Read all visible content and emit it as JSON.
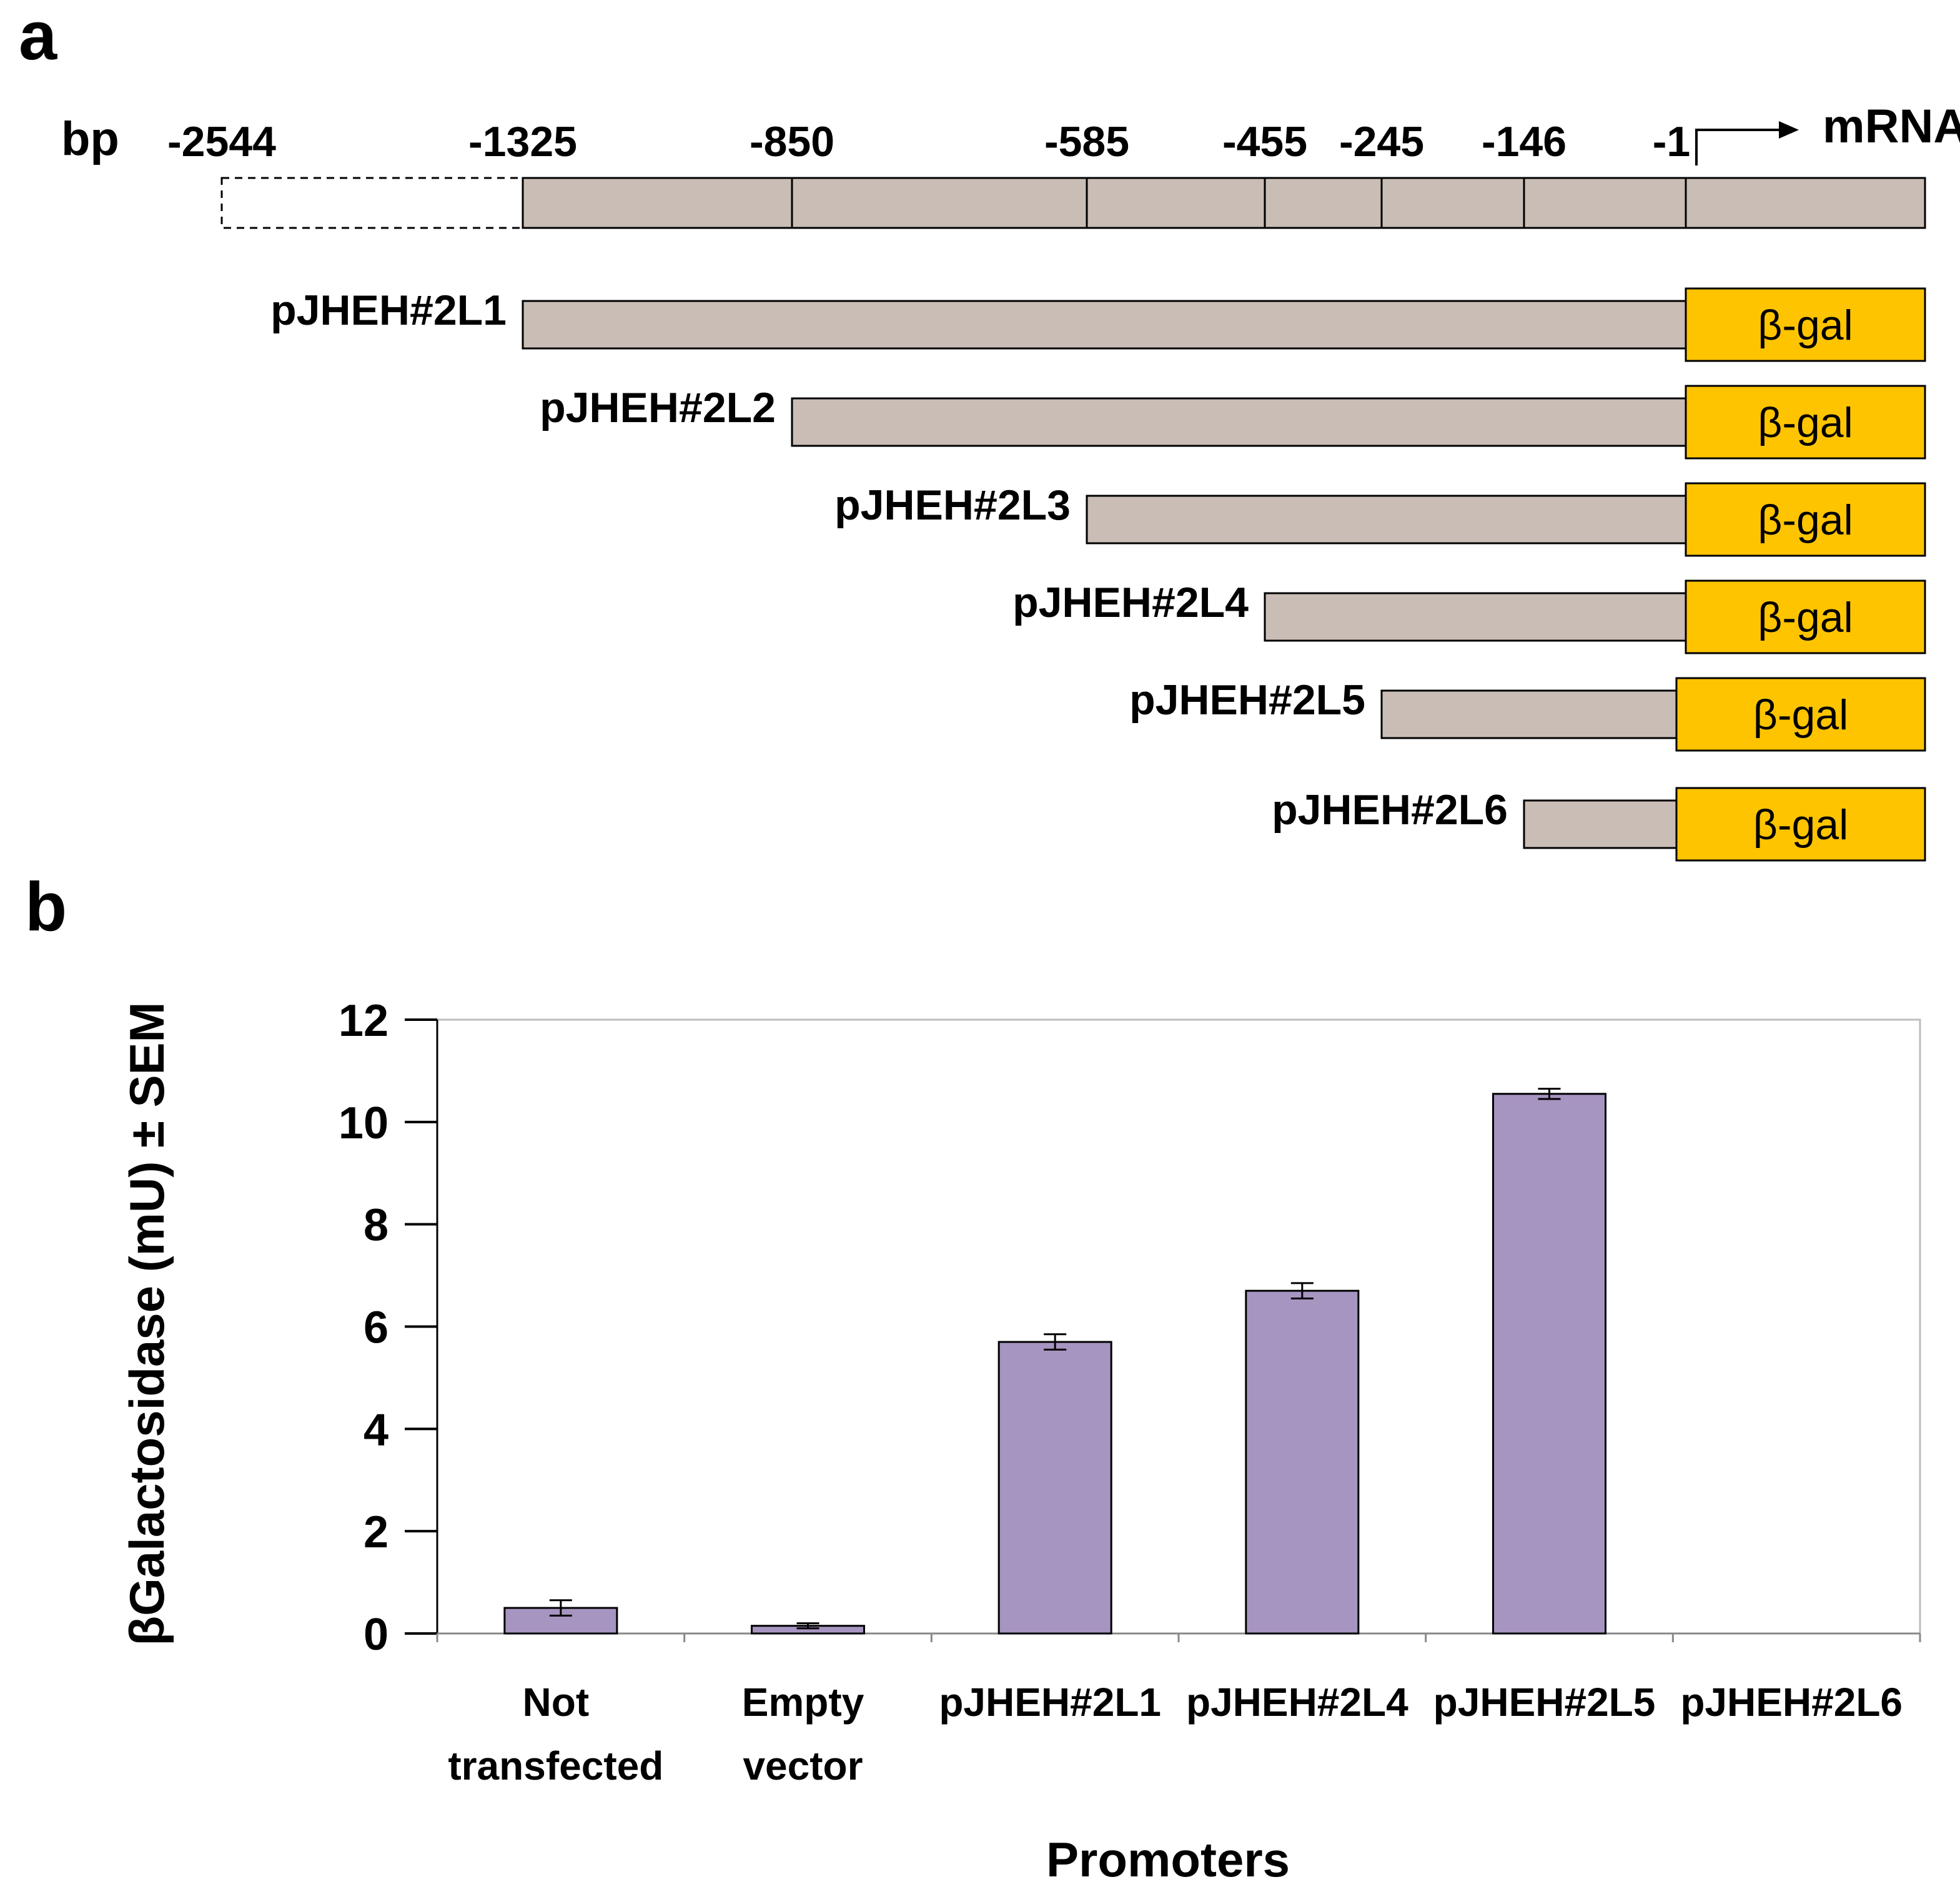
{
  "panel_a": {
    "letter": "a",
    "bp_label": "bp",
    "positions": [
      {
        "label": "-2544",
        "value": -2544
      },
      {
        "label": "-1325",
        "value": -1325
      },
      {
        "label": "-850",
        "value": -850
      },
      {
        "label": "-585",
        "value": -585
      },
      {
        "label": "-455",
        "value": -455
      },
      {
        "label": "-245",
        "value": -245
      },
      {
        "label": "-146",
        "value": -146
      },
      {
        "label": "-1",
        "value": -1
      }
    ],
    "mrna_label": "mRNA",
    "reporter_label": "β-gal",
    "constructs": [
      {
        "name": "pJHEH#2L1",
        "start": -1325
      },
      {
        "name": "pJHEH#2L2",
        "start": -850
      },
      {
        "name": "pJHEH#2L3",
        "start": -585
      },
      {
        "name": "pJHEH#2L4",
        "start": -455
      },
      {
        "name": "pJHEH#2L5",
        "start": -245
      },
      {
        "name": "pJHEH#2L6",
        "start": -146
      }
    ],
    "colors": {
      "promoter": "#c9bdb6",
      "reporter": "#ffc400"
    }
  },
  "panel_b": {
    "letter": "b"
  },
  "chart_data": {
    "type": "bar",
    "title": "",
    "categories": [
      [
        "Not",
        "transfected"
      ],
      [
        "Empty",
        "vector"
      ],
      [
        "pJHEH#2L1"
      ],
      [
        "pJHEH#2L4"
      ],
      [
        "pJHEH#2L5"
      ],
      [
        "pJHEH#2L6"
      ]
    ],
    "values": [
      0.5,
      0.15,
      5.7,
      6.7,
      10.55,
      0
    ],
    "errors": [
      0.15,
      0.05,
      0.15,
      0.15,
      0.1,
      0
    ],
    "xlabel": "Promoters",
    "ylabel": "βGalactosidase (mU) ± SEM",
    "ylim": [
      0,
      12
    ],
    "yticks": [
      0,
      2,
      4,
      6,
      8,
      10,
      12
    ],
    "bar_color": "#a694c1",
    "grid": false
  }
}
